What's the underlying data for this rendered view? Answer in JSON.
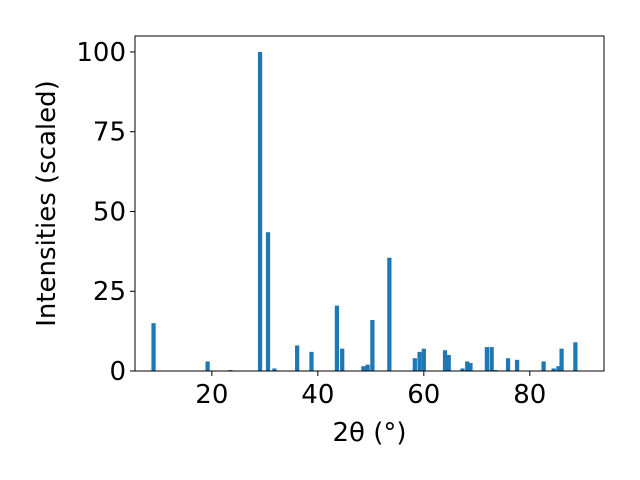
{
  "chart_data": {
    "type": "bar",
    "title": "",
    "xlabel": "2θ (°)",
    "ylabel": "Intensities (scaled)",
    "xlim": [
      5.5,
      94
    ],
    "ylim": [
      0,
      105
    ],
    "xticks": [
      20,
      40,
      60,
      80
    ],
    "yticks": [
      0,
      25,
      50,
      75,
      100
    ],
    "grid": false,
    "bar_color": "#1f77b4",
    "bar_width_deg": 0.8,
    "x": [
      9.0,
      19.2,
      23.5,
      29.1,
      30.6,
      31.8,
      36.1,
      38.8,
      43.6,
      44.6,
      48.6,
      49.4,
      50.3,
      53.5,
      58.3,
      59.2,
      60.0,
      64.0,
      64.7,
      67.3,
      68.2,
      68.8,
      71.9,
      72.8,
      73.5,
      75.9,
      77.6,
      82.6,
      84.5,
      85.4,
      86.0,
      88.6
    ],
    "values": [
      15,
      3,
      0.3,
      100,
      43.5,
      0.8,
      8,
      6,
      20.5,
      7,
      1.5,
      2,
      16,
      35.5,
      4,
      6,
      7,
      6.5,
      5,
      0.8,
      3,
      2.5,
      7.5,
      7.5,
      0.3,
      4,
      3.5,
      3,
      0.8,
      1.5,
      7,
      9
    ]
  }
}
